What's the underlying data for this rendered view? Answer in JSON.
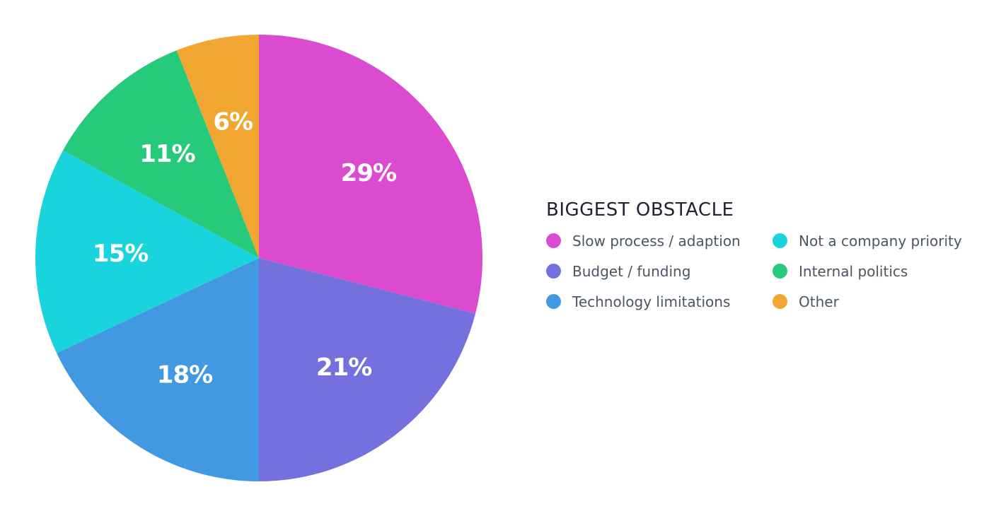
{
  "chart_data": {
    "type": "pie",
    "title": "",
    "legend_title": "BIGGEST OBSTACLE",
    "legend_position": "right",
    "start_angle": "12 o'clock",
    "direction": "clockwise",
    "slices": [
      {
        "name": "Slow process / adaption",
        "value": 29,
        "label": "29%",
        "color": "#db4bcf"
      },
      {
        "name": "Budget / funding",
        "value": 21,
        "label": "21%",
        "color": "#7471de"
      },
      {
        "name": "Technology limitations",
        "value": 18,
        "label": "18%",
        "color": "#4299e1"
      },
      {
        "name": "Not a company priority",
        "value": 15,
        "label": "15%",
        "color": "#19d3dd"
      },
      {
        "name": "Internal politics",
        "value": 11,
        "label": "11%",
        "color": "#27c97a"
      },
      {
        "name": "Other",
        "value": 6,
        "label": "6%",
        "color": "#f2a632"
      }
    ],
    "legend_order": [
      "Slow process / adaption",
      "Not a company priority",
      "Budget / funding",
      "Internal politics",
      "Technology limitations",
      "Other"
    ]
  }
}
